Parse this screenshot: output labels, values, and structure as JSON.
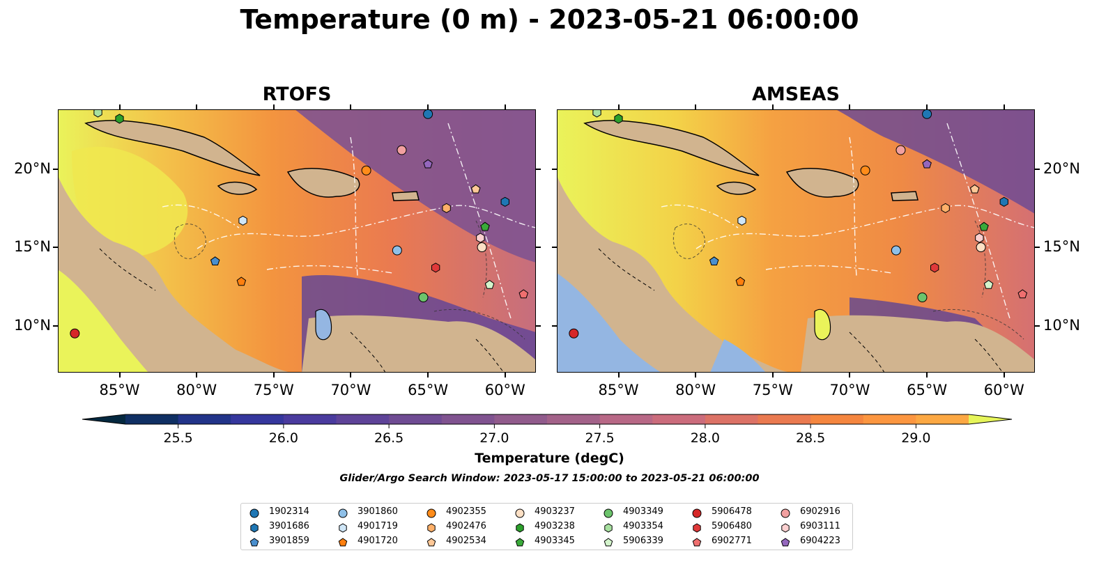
{
  "figure": {
    "title": "Temperature (0 m) - 2023-05-21 06:00:00",
    "search_window": "Glider/Argo Search Window: 2023-05-17 15:00:00 to 2023-05-21 06:00:00"
  },
  "panels": [
    {
      "title": "RTOFS"
    },
    {
      "title": "AMSEAS"
    }
  ],
  "map_extent": {
    "lon_min": -89,
    "lon_max": -58,
    "lat_min": 7,
    "lat_max": 23.8
  },
  "axes": {
    "lon_ticks": [
      {
        "value": -85,
        "label": "85°W"
      },
      {
        "value": -80,
        "label": "80°W"
      },
      {
        "value": -75,
        "label": "75°W"
      },
      {
        "value": -70,
        "label": "70°W"
      },
      {
        "value": -65,
        "label": "65°W"
      },
      {
        "value": -60,
        "label": "60°W"
      }
    ],
    "lat_ticks": [
      {
        "value": 20,
        "label": "20°N"
      },
      {
        "value": 15,
        "label": "15°N"
      },
      {
        "value": 10,
        "label": "10°N"
      }
    ]
  },
  "colorbar": {
    "label": "Temperature (degC)",
    "min": 25.25,
    "max": 29.25,
    "step": 0.25,
    "extend": "both",
    "tick_labels": [
      "25.5",
      "26.0",
      "26.5",
      "27.0",
      "27.5",
      "28.0",
      "28.5",
      "29.0"
    ],
    "colors": [
      "#04283f",
      "#0f2f63",
      "#223489",
      "#35379d",
      "#4a3b9e",
      "#5e4398",
      "#6f4b93",
      "#805390",
      "#915b8c",
      "#a36289",
      "#b86886",
      "#cb6c7c",
      "#dc7266",
      "#ea7a50",
      "#f5863f",
      "#fc9640",
      "#fca843",
      "#f9bd45",
      "#f5d348",
      "#f0e74f",
      "#e6f55a"
    ],
    "land_color": "#d1b48f",
    "pacific_color_amseas": "#94b6e2"
  },
  "legend": {
    "items": [
      {
        "id": "1902314",
        "marker": "circle",
        "color": "#1f77b4"
      },
      {
        "id": "3901686",
        "marker": "hexagon",
        "color": "#1f77b4"
      },
      {
        "id": "3901859",
        "marker": "pentagon",
        "color": "#4a8fce"
      },
      {
        "id": "3901860",
        "marker": "circle",
        "color": "#8fc0e8"
      },
      {
        "id": "4901719",
        "marker": "hexagon",
        "color": "#cfe6f7"
      },
      {
        "id": "4901720",
        "marker": "pentagon",
        "color": "#ff7f0e"
      },
      {
        "id": "4902355",
        "marker": "circle",
        "color": "#ff8c1a"
      },
      {
        "id": "4902476",
        "marker": "hexagon",
        "color": "#ffb069"
      },
      {
        "id": "4902534",
        "marker": "pentagon",
        "color": "#ffc897"
      },
      {
        "id": "4903237",
        "marker": "circle",
        "color": "#fde0c5"
      },
      {
        "id": "4903238",
        "marker": "hexagon",
        "color": "#2ca02c"
      },
      {
        "id": "4903345",
        "marker": "pentagon",
        "color": "#3aaa3a"
      },
      {
        "id": "4903349",
        "marker": "circle",
        "color": "#6cc46c"
      },
      {
        "id": "4903354",
        "marker": "hexagon",
        "color": "#a8e1a0"
      },
      {
        "id": "5906339",
        "marker": "pentagon",
        "color": "#d4f4cc"
      },
      {
        "id": "5906478",
        "marker": "circle",
        "color": "#d62728"
      },
      {
        "id": "5906480",
        "marker": "hexagon",
        "color": "#e0393a"
      },
      {
        "id": "6902771",
        "marker": "pentagon",
        "color": "#ef6f6f"
      },
      {
        "id": "6902916",
        "marker": "circle",
        "color": "#f2a0a0"
      },
      {
        "id": "6903111",
        "marker": "hexagon",
        "color": "#fcd0d0"
      },
      {
        "id": "6904223",
        "marker": "pentagon",
        "color": "#9467bd"
      }
    ]
  },
  "platforms": [
    {
      "id": "1902314",
      "lon": -65.0,
      "lat": 23.5
    },
    {
      "id": "3901686",
      "lon": -60.0,
      "lat": 17.9
    },
    {
      "id": "3901859",
      "lon": -78.8,
      "lat": 14.1
    },
    {
      "id": "3901860",
      "lon": -67.0,
      "lat": 14.8
    },
    {
      "id": "4901719",
      "lon": -77.0,
      "lat": 16.7
    },
    {
      "id": "4901720",
      "lon": -77.1,
      "lat": 12.8
    },
    {
      "id": "4902355",
      "lon": -69.0,
      "lat": 19.9
    },
    {
      "id": "4902476",
      "lon": -63.8,
      "lat": 17.5
    },
    {
      "id": "4902534",
      "lon": -61.9,
      "lat": 18.7
    },
    {
      "id": "4903237",
      "lon": -61.5,
      "lat": 15.0
    },
    {
      "id": "4903238",
      "lon": -85.0,
      "lat": 23.2
    },
    {
      "id": "4903345",
      "lon": -61.3,
      "lat": 16.3
    },
    {
      "id": "4903349",
      "lon": -65.3,
      "lat": 11.8
    },
    {
      "id": "4903354",
      "lon": -86.4,
      "lat": 23.6
    },
    {
      "id": "5906339",
      "lon": -61.0,
      "lat": 12.6
    },
    {
      "id": "5906478",
      "lon": -87.9,
      "lat": 9.5
    },
    {
      "id": "5906480",
      "lon": -64.5,
      "lat": 13.7
    },
    {
      "id": "6902771",
      "lon": -58.8,
      "lat": 12.0
    },
    {
      "id": "6902916",
      "lon": -66.7,
      "lat": 21.2
    },
    {
      "id": "6903111",
      "lon": -61.6,
      "lat": 15.6
    },
    {
      "id": "6904223",
      "lon": -65.0,
      "lat": 20.3
    }
  ]
}
